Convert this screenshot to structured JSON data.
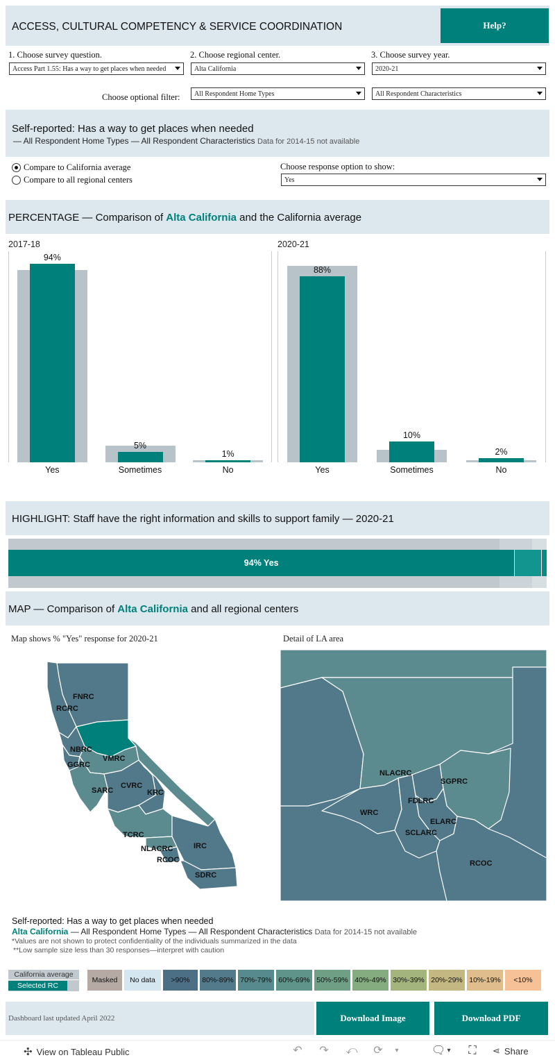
{
  "header": {
    "title": "ACCESS, CULTURAL COMPETENCY & SERVICE COORDINATION",
    "help_label": "Help?"
  },
  "controls": {
    "question_label": "1. Choose survey question.",
    "question_value": "Access Part 1.55: Has a way to get places when needed",
    "rc_label": "2. Choose regional center.",
    "rc_value": "Alta California",
    "year_label": "3. Choose survey year.",
    "year_value": "2020-21",
    "filter_label": "Choose optional filter:",
    "home_value": "All Respondent Home Types",
    "char_value": "All Respondent Characteristics"
  },
  "summary": {
    "title": "Self-reported: Has a way to get places when needed",
    "subtitle": "— All Respondent Home Types — All Respondent Characteristics",
    "note": "Data for 2014-15 not available"
  },
  "compare": {
    "option_ca": "Compare to California average",
    "option_all": "Compare to all regional centers",
    "response_label": "Choose response option to show:",
    "response_value": "Yes"
  },
  "percentage": {
    "prefix": "PERCENTAGE — Comparison of ",
    "rc": "Alta California",
    "suffix": " and the California average"
  },
  "chart_data": [
    {
      "type": "bar",
      "title": "2017-18",
      "categories": [
        "Yes",
        "Sometimes",
        "No"
      ],
      "series": [
        {
          "name": "California average",
          "values": [
            91,
            8,
            1
          ]
        },
        {
          "name": "Alta California",
          "values": [
            94,
            5,
            1
          ]
        }
      ],
      "labels": [
        "94%",
        "5%",
        "1%"
      ],
      "ylim": [
        0,
        100
      ]
    },
    {
      "type": "bar",
      "title": "2020-21",
      "categories": [
        "Yes",
        "Sometimes",
        "No"
      ],
      "series": [
        {
          "name": "California average",
          "values": [
            93,
            6,
            1
          ]
        },
        {
          "name": "Alta California",
          "values": [
            88,
            10,
            2
          ]
        }
      ],
      "labels": [
        "88%",
        "10%",
        "2%"
      ],
      "ylim": [
        0,
        100
      ]
    }
  ],
  "highlight": {
    "title": "HIGHLIGHT: Staff have the right information and skills to support family — 2020-21",
    "bar_label": "94% Yes",
    "yes_pct": 94,
    "sometimes_pct": 5,
    "no_pct": 1
  },
  "map": {
    "prefix": "MAP — Comparison of ",
    "rc": "Alta California",
    "suffix": " and all regional centers",
    "left_caption": "Map shows % \"Yes\" response for 2020-21",
    "right_caption": "Detail of LA area",
    "state_labels": [
      "FNRC",
      "RCRC",
      "NBRC",
      "GGRC",
      "VMRC",
      "SARC",
      "CVRC",
      "KRC",
      "TCRC",
      "NLACRC",
      "RCOC",
      "IRC",
      "SDRC"
    ],
    "la_labels": [
      "NLACRC",
      "SGPRC",
      "FDLRC",
      "WRC",
      "ELARC",
      "SCLARC",
      "RCOC"
    ]
  },
  "footer": {
    "title": "Self-reported: Has a way to get places when needed",
    "rc": "Alta California",
    "subtitle": " — All Respondent Home Types — All Respondent Characteristics",
    "note": "Data for 2014-15 not available",
    "footnote1": "*Values are not shown to protect confidentiality of the individuals summarized in the data",
    "footnote2": "**Low sample size less than 30 responses—interpret with caution"
  },
  "legend": {
    "ca_avg": "California average",
    "selected": "Selected RC",
    "items": [
      {
        "label": "Masked",
        "color": "#b5aba4"
      },
      {
        "label": "No data",
        "color": "#d4e6f0"
      },
      {
        "label": ">90%",
        "color": "#4d6f85"
      },
      {
        "label": "80%-89%",
        "color": "#527a8a"
      },
      {
        "label": "70%-79%",
        "color": "#578a8c"
      },
      {
        "label": "60%-69%",
        "color": "#5e9489"
      },
      {
        "label": "50%-59%",
        "color": "#6fa085"
      },
      {
        "label": "40%-49%",
        "color": "#85ab80"
      },
      {
        "label": "30%-39%",
        "color": "#a3b47d"
      },
      {
        "label": "20%-29%",
        "color": "#c4b882"
      },
      {
        "label": "10%-19%",
        "color": "#dfbd8c"
      },
      {
        "label": "<10%",
        "color": "#f6c197"
      }
    ]
  },
  "bottom": {
    "updated": "Dashboard last updated April 2022",
    "download_image": "Download Image",
    "download_pdf": "Download PDF"
  },
  "toolbar": {
    "view_label": "View on Tableau Public",
    "share_label": "Share"
  },
  "colors": {
    "teal": "#00807b",
    "band": "#dde8ee",
    "grey_bar": "#b8c2c9",
    "map_base": "#52798a",
    "map_mid": "#5b8a8f"
  }
}
